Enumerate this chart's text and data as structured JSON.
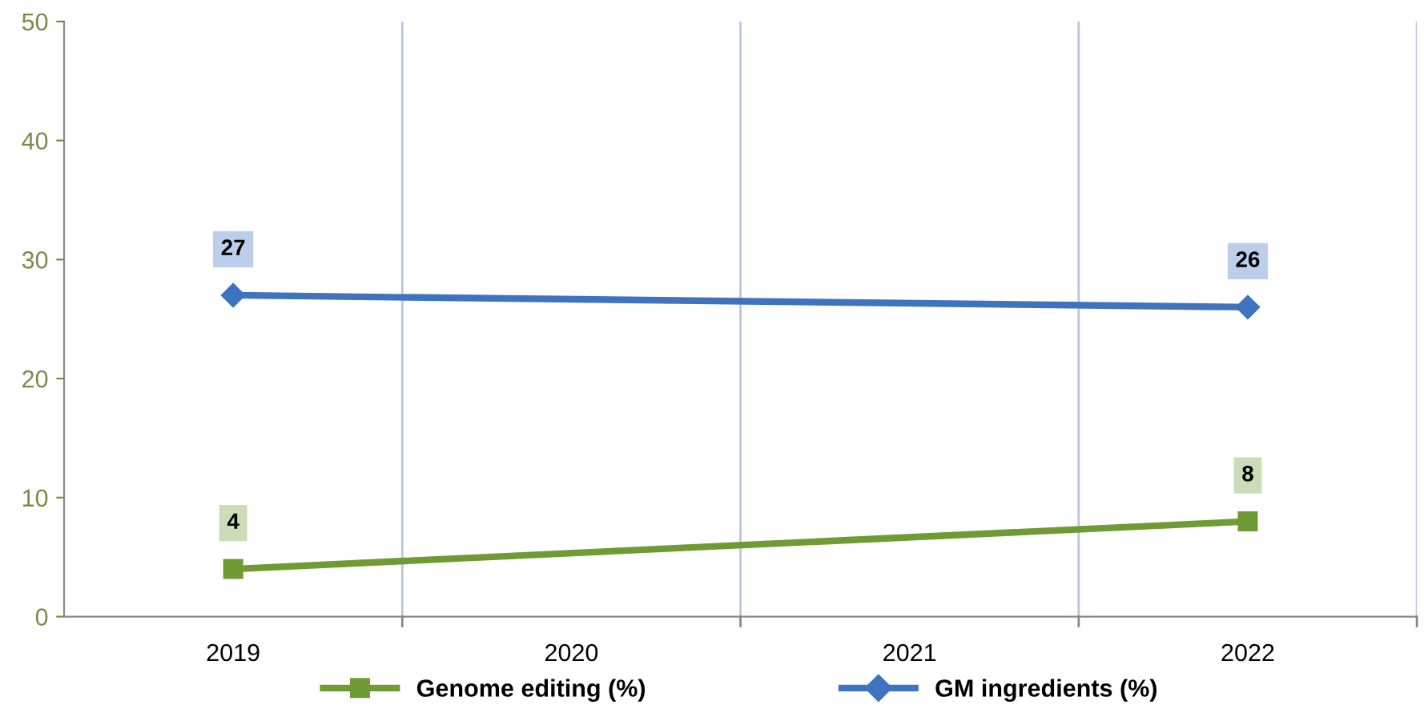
{
  "chart_data": {
    "type": "line",
    "categories": [
      "2019",
      "2020",
      "2021",
      "2022"
    ],
    "series": [
      {
        "name": "Genome editing (%)",
        "color": "#6f9a34",
        "marker": "square",
        "values": [
          4,
          null,
          null,
          8
        ]
      },
      {
        "name": "GM ingredients (%)",
        "color": "#3f73c0",
        "marker": "diamond",
        "values": [
          27,
          null,
          null,
          26
        ]
      }
    ],
    "ylim": [
      0,
      50
    ],
    "yticks": [
      0,
      10,
      20,
      30,
      40,
      50
    ],
    "grid": "x",
    "legend": "bottom",
    "data_labels": true
  }
}
